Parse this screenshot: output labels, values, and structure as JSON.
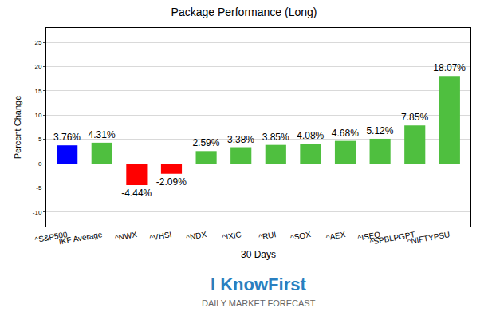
{
  "chart_data": {
    "type": "bar",
    "title": "Package Performance (Long)",
    "x_label": "30 Days",
    "y_label": "Percent Change",
    "categories": [
      "^S&P500",
      "IKF Average",
      "^NWX",
      "^VHSI",
      "^NDX",
      "^IXIC",
      "^RUI",
      "^SOX",
      "^AEX",
      "^ISEQ",
      "^SPBLPGPT",
      "^NIFTYPSU"
    ],
    "values": [
      3.76,
      4.31,
      -4.44,
      -2.09,
      2.59,
      3.38,
      3.85,
      4.08,
      4.68,
      5.12,
      7.85,
      18.07
    ],
    "value_labels": [
      "3.76%",
      "4.31%",
      "-4.44%",
      "-2.09%",
      "2.59%",
      "3.38%",
      "3.85%",
      "4.08%",
      "4.68%",
      "5.12%",
      "7.85%",
      "18.07%"
    ],
    "colors": [
      "#0000ff",
      "#4fbf3f",
      "#ff0000",
      "#ff0000",
      "#4fbf3f",
      "#4fbf3f",
      "#4fbf3f",
      "#4fbf3f",
      "#4fbf3f",
      "#4fbf3f",
      "#4fbf3f",
      "#4fbf3f"
    ],
    "data_labels": true,
    "ylim": [
      -13,
      28
    ],
    "yticks": [
      -10,
      -5,
      0,
      5,
      10,
      15,
      20,
      25
    ],
    "grid": true,
    "annotations": [
      "I KnowFirst",
      "DAILY MARKET FORECAST"
    ]
  }
}
